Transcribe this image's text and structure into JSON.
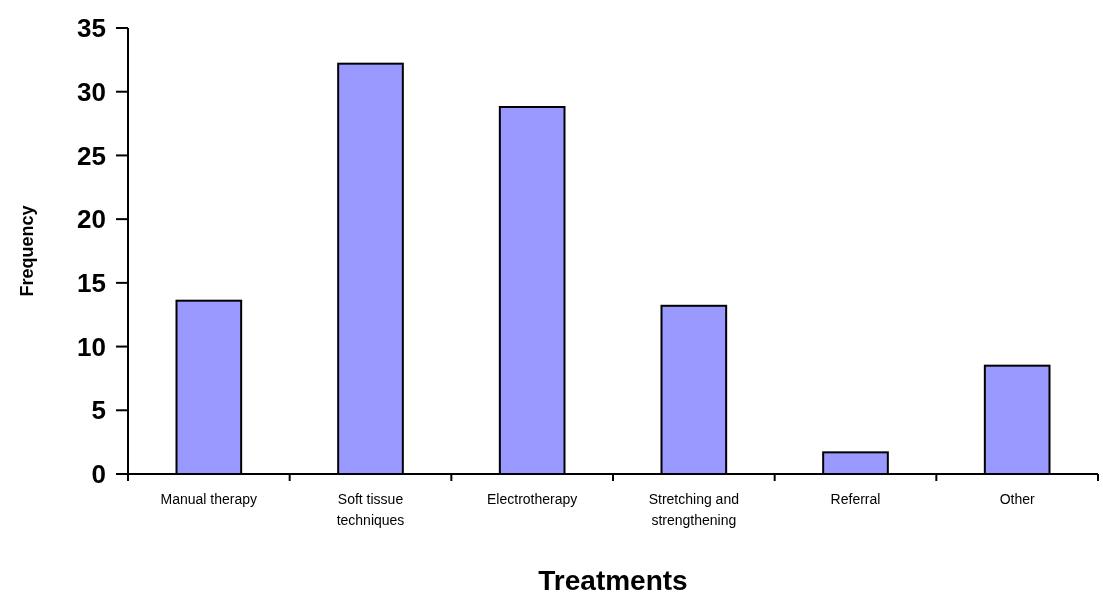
{
  "chart_data": {
    "type": "bar",
    "xlabel": "Treatments",
    "ylabel": "Frequency",
    "categories": [
      "Manual therapy",
      "Soft tissue techniques",
      "Electrotherapy",
      "Stretching and strengthening",
      "Referral",
      "Other"
    ],
    "values": [
      13.6,
      32.2,
      28.8,
      13.2,
      1.7,
      8.5
    ],
    "color": "#9999ff",
    "ylim": [
      0,
      35
    ],
    "yticks": [
      0,
      5,
      10,
      15,
      20,
      25,
      30,
      35
    ],
    "grid": false
  }
}
